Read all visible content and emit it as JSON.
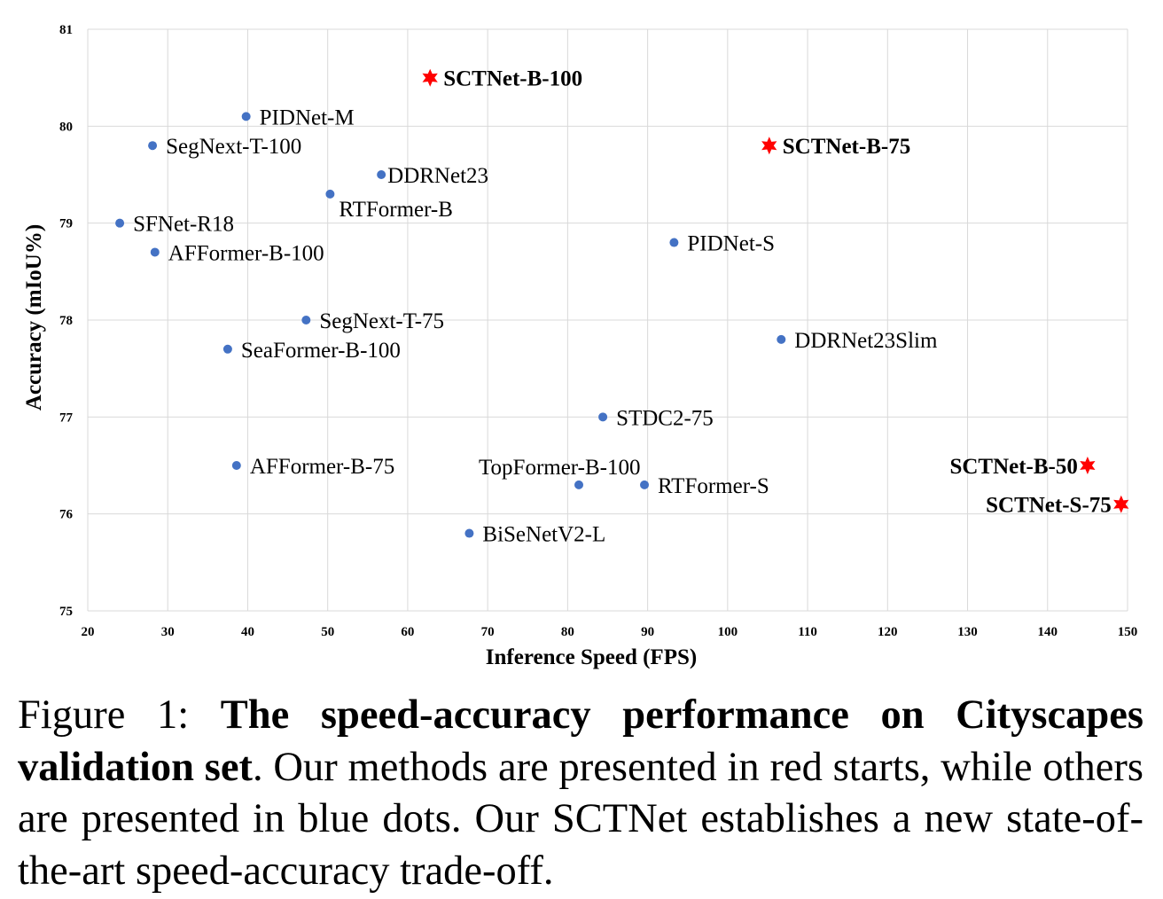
{
  "chart_data": {
    "type": "scatter",
    "xlabel": "Inference Speed (FPS)",
    "ylabel": "Accuracy (mIoU%)",
    "xlim": [
      20,
      150
    ],
    "ylim": [
      75,
      81
    ],
    "xticks": [
      20,
      30,
      40,
      50,
      60,
      70,
      80,
      90,
      100,
      110,
      120,
      130,
      140,
      150
    ],
    "yticks": [
      75,
      76,
      77,
      78,
      79,
      80,
      81
    ],
    "grid": true,
    "colors": {
      "ours": "#ff0000",
      "others": "#4472c4",
      "grid": "#d9d9d9"
    },
    "points": [
      {
        "name": "SCTNet-B-100",
        "x": 62.8,
        "y": 80.5,
        "ours": true,
        "label_pos": "right"
      },
      {
        "name": "PIDNet-M",
        "x": 39.8,
        "y": 80.1,
        "ours": false,
        "label_pos": "right"
      },
      {
        "name": "SegNext-T-100",
        "x": 28.1,
        "y": 79.8,
        "ours": false,
        "label_pos": "right"
      },
      {
        "name": "SCTNet-B-75",
        "x": 105.2,
        "y": 79.8,
        "ours": true,
        "label_pos": "right"
      },
      {
        "name": "DDRNet23",
        "x": 56.7,
        "y": 79.5,
        "ours": false,
        "label_pos": "right"
      },
      {
        "name": "RTFormer-B",
        "x": 50.3,
        "y": 79.3,
        "ours": false,
        "label_pos": "below"
      },
      {
        "name": "SFNet-R18",
        "x": 24.0,
        "y": 79.0,
        "ours": false,
        "label_pos": "right"
      },
      {
        "name": "PIDNet-S",
        "x": 93.3,
        "y": 78.8,
        "ours": false,
        "label_pos": "right"
      },
      {
        "name": "AFFormer-B-100",
        "x": 28.4,
        "y": 78.7,
        "ours": false,
        "label_pos": "right"
      },
      {
        "name": "SegNext-T-75",
        "x": 47.3,
        "y": 78.0,
        "ours": false,
        "label_pos": "right"
      },
      {
        "name": "DDRNet23Slim",
        "x": 106.7,
        "y": 77.8,
        "ours": false,
        "label_pos": "right"
      },
      {
        "name": "SeaFormer-B-100",
        "x": 37.5,
        "y": 77.7,
        "ours": false,
        "label_pos": "right"
      },
      {
        "name": "STDC2-75",
        "x": 84.4,
        "y": 77.0,
        "ours": false,
        "label_pos": "right"
      },
      {
        "name": "AFFormer-B-75",
        "x": 38.6,
        "y": 76.5,
        "ours": false,
        "label_pos": "right"
      },
      {
        "name": "SCTNet-B-50",
        "x": 145.0,
        "y": 76.5,
        "ours": true,
        "label_pos": "left"
      },
      {
        "name": "TopFormer-B-100",
        "x": 81.4,
        "y": 76.3,
        "ours": false,
        "label_pos": "above"
      },
      {
        "name": "RTFormer-S",
        "x": 89.6,
        "y": 76.3,
        "ours": false,
        "label_pos": "right"
      },
      {
        "name": "SCTNet-S-75",
        "x": 149.2,
        "y": 76.1,
        "ours": true,
        "label_pos": "left"
      },
      {
        "name": "BiSeNetV2-L",
        "x": 67.7,
        "y": 75.8,
        "ours": false,
        "label_pos": "right"
      }
    ]
  },
  "caption": {
    "prefix": "Figure 1: ",
    "bold": "The speed-accuracy performance on Cityscapes validation set",
    "rest": ". Our methods are presented in red starts, while others are presented in blue dots. Our SCTNet establishes a new state-of-the-art speed-accuracy trade-off."
  }
}
